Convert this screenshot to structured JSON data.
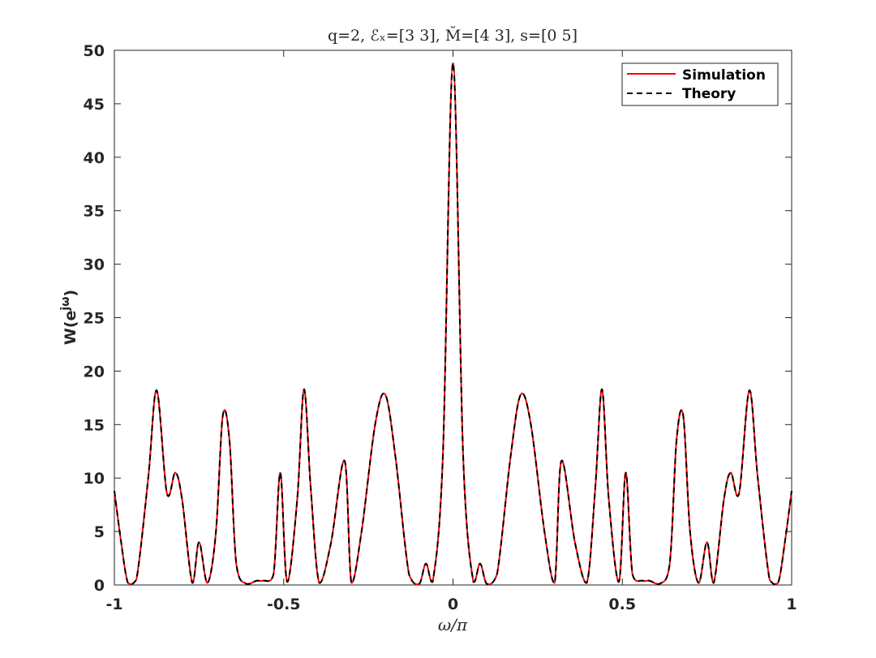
{
  "chart_data": {
    "type": "line",
    "title": "q=2, ℰₓ=[3 3], M̆=[4 3], s=[0 5]",
    "xlabel": "ω/π",
    "ylabel": "W(e^{jω})",
    "ylabel_base": "W(e",
    "ylabel_sup": "jω",
    "ylabel_tail": ")",
    "xlim": [
      -1,
      1
    ],
    "ylim": [
      0,
      50
    ],
    "xticks": [
      -1,
      -0.5,
      0,
      0.5,
      1
    ],
    "xtick_labels": [
      "-1",
      "-0.5",
      "0",
      "0.5",
      "1"
    ],
    "yticks": [
      0,
      5,
      10,
      15,
      20,
      25,
      30,
      35,
      40,
      45,
      50
    ],
    "ytick_labels": [
      "0",
      "5",
      "10",
      "15",
      "20",
      "25",
      "30",
      "35",
      "40",
      "45",
      "50"
    ],
    "grid": false,
    "legend_position": "top-right",
    "series": [
      {
        "name": "Simulation",
        "color": "#ff0000",
        "style": "solid",
        "x": [
          0,
          0.03,
          0.06,
          0.08,
          0.1,
          0.13,
          0.17,
          0.2,
          0.23,
          0.27,
          0.3,
          0.32,
          0.36,
          0.395,
          0.42,
          0.44,
          0.46,
          0.49,
          0.51,
          0.53,
          0.56,
          0.58,
          0.61,
          0.64,
          0.66,
          0.68,
          0.7,
          0.725,
          0.75,
          0.77,
          0.8,
          0.82,
          0.845,
          0.875,
          0.9,
          0.935,
          0.96,
          0.98,
          1.0
        ],
        "y": [
          48.8,
          12.0,
          0.3,
          2.0,
          0.1,
          1.0,
          12.0,
          17.8,
          15.0,
          5.0,
          0.2,
          11.6,
          4.0,
          0.2,
          9.0,
          18.3,
          8.0,
          0.3,
          10.5,
          1.0,
          0.4,
          0.4,
          0.1,
          2.0,
          13.5,
          15.8,
          5.0,
          0.2,
          4.0,
          0.2,
          8.0,
          10.5,
          8.6,
          18.2,
          10.0,
          0.5,
          0.2,
          4.0,
          8.8
        ],
        "symmetric": true
      },
      {
        "name": "Theory",
        "color": "#000000",
        "style": "dashed",
        "x": [
          0,
          0.03,
          0.06,
          0.08,
          0.1,
          0.13,
          0.17,
          0.2,
          0.23,
          0.27,
          0.3,
          0.32,
          0.36,
          0.395,
          0.42,
          0.44,
          0.46,
          0.49,
          0.51,
          0.53,
          0.56,
          0.58,
          0.61,
          0.64,
          0.66,
          0.68,
          0.7,
          0.725,
          0.75,
          0.77,
          0.8,
          0.82,
          0.845,
          0.875,
          0.9,
          0.935,
          0.96,
          0.98,
          1.0
        ],
        "y": [
          48.8,
          12.0,
          0.3,
          2.0,
          0.1,
          1.0,
          12.0,
          17.8,
          15.0,
          5.0,
          0.2,
          11.6,
          4.0,
          0.2,
          9.0,
          18.3,
          8.0,
          0.3,
          10.5,
          1.0,
          0.4,
          0.4,
          0.1,
          2.0,
          13.5,
          15.8,
          5.0,
          0.2,
          4.0,
          0.2,
          8.0,
          10.5,
          8.6,
          18.2,
          10.0,
          0.5,
          0.2,
          4.0,
          8.8
        ],
        "symmetric": true
      }
    ]
  }
}
